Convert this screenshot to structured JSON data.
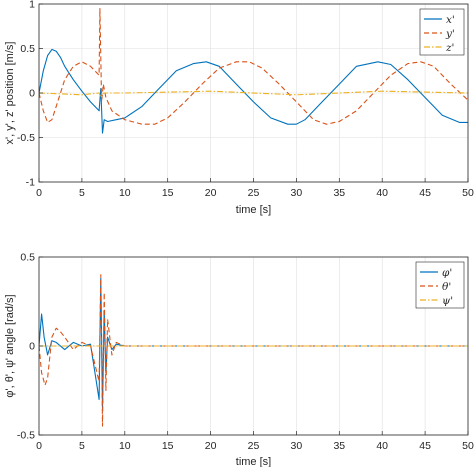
{
  "colors": {
    "series1": "#0072BD",
    "series2": "#D95319",
    "series3": "#EDB120",
    "grid": "#dfdfdf",
    "axes": "#262626"
  },
  "chart_data": [
    {
      "type": "line",
      "title": "",
      "xlabel": "time [s]",
      "ylabel": "x', y', z' position [m/s]",
      "xlim": [
        0,
        50
      ],
      "ylim": [
        -1,
        1
      ],
      "xticks": [
        0,
        5,
        10,
        15,
        20,
        25,
        30,
        35,
        40,
        45,
        50
      ],
      "yticks": [
        -1,
        -0.5,
        0,
        0.5,
        1
      ],
      "xtick_labels": [
        "0",
        "5",
        "10",
        "15",
        "20",
        "25",
        "30",
        "35",
        "40",
        "45",
        "50"
      ],
      "ytick_labels": [
        "-1",
        "-0.5",
        "0",
        "0.5",
        "1"
      ],
      "grid": true,
      "legend_position": "top-right",
      "series": [
        {
          "name": "x'",
          "style": "solid",
          "x": [
            0,
            0.5,
            1,
            1.5,
            2,
            2.5,
            3,
            4,
            5,
            6,
            7,
            7.2,
            7.4,
            7.6,
            8,
            9,
            10,
            12,
            14,
            16,
            18,
            19.5,
            21,
            23,
            25,
            27,
            29,
            30,
            31,
            33,
            35,
            37,
            39.5,
            41,
            43,
            45,
            47,
            49,
            50
          ],
          "y": [
            0,
            0.25,
            0.42,
            0.49,
            0.47,
            0.4,
            0.3,
            0.15,
            0.02,
            -0.1,
            -0.2,
            0.05,
            -0.45,
            -0.3,
            -0.32,
            -0.3,
            -0.28,
            -0.15,
            0.05,
            0.25,
            0.33,
            0.35,
            0.3,
            0.1,
            -0.1,
            -0.28,
            -0.35,
            -0.35,
            -0.3,
            -0.1,
            0.1,
            0.3,
            0.35,
            0.32,
            0.15,
            -0.05,
            -0.25,
            -0.33,
            -0.33
          ]
        },
        {
          "name": "y'",
          "style": "dashed",
          "x": [
            0,
            0.5,
            1,
            1.5,
            2,
            3,
            4,
            5,
            6,
            7,
            7.1,
            7.3,
            7.5,
            7.8,
            8.5,
            10,
            12,
            13.5,
            15,
            17,
            19,
            21,
            23,
            24.5,
            26,
            28,
            30,
            32,
            33.5,
            35,
            37,
            39,
            41,
            43,
            44.5,
            46,
            48,
            50
          ],
          "y": [
            0,
            -0.2,
            -0.33,
            -0.3,
            -0.15,
            0.15,
            0.3,
            0.35,
            0.3,
            0.2,
            0.95,
            -0.1,
            0.1,
            -0.05,
            -0.2,
            -0.3,
            -0.35,
            -0.35,
            -0.28,
            -0.1,
            0.1,
            0.28,
            0.35,
            0.35,
            0.28,
            0.1,
            -0.1,
            -0.3,
            -0.35,
            -0.32,
            -0.2,
            0.0,
            0.2,
            0.33,
            0.35,
            0.3,
            0.1,
            -0.08
          ]
        },
        {
          "name": "z'",
          "style": "dashdot",
          "x": [
            0,
            5,
            7,
            7.2,
            7.5,
            10,
            20,
            30,
            40,
            50
          ],
          "y": [
            0,
            -0.02,
            0,
            -0.05,
            0,
            0,
            0.02,
            -0.02,
            0.02,
            0
          ]
        }
      ]
    },
    {
      "type": "line",
      "title": "",
      "xlabel": "time [s]",
      "ylabel": "φ', θ', ψ' angle [rad/s]",
      "xlim": [
        0,
        50
      ],
      "ylim": [
        -0.5,
        0.5
      ],
      "xticks": [
        0,
        5,
        10,
        15,
        20,
        25,
        30,
        35,
        40,
        45,
        50
      ],
      "yticks": [
        -0.5,
        0,
        0.5
      ],
      "xtick_labels": [
        "0",
        "5",
        "10",
        "15",
        "20",
        "25",
        "30",
        "35",
        "40",
        "45",
        "50"
      ],
      "ytick_labels": [
        "-0.5",
        "0",
        "0.5"
      ],
      "grid": true,
      "legend_position": "top-right",
      "series": [
        {
          "name": "φ'",
          "style": "solid",
          "x": [
            0,
            0.3,
            0.6,
            1,
            1.5,
            2,
            3,
            4,
            5,
            6,
            7,
            7.2,
            7.4,
            7.6,
            7.8,
            8,
            8.5,
            9,
            10,
            50
          ],
          "y": [
            0,
            0.18,
            0.05,
            -0.05,
            0.03,
            0.02,
            -0.02,
            0.02,
            0,
            0.01,
            -0.3,
            0.38,
            -0.35,
            0.2,
            -0.15,
            0.05,
            -0.02,
            0.01,
            0,
            0
          ]
        },
        {
          "name": "θ'",
          "style": "dashed",
          "x": [
            0,
            0.3,
            0.7,
            1,
            1.5,
            2,
            2.5,
            3,
            4,
            5,
            6,
            7,
            7.2,
            7.4,
            7.6,
            7.8,
            8,
            8.5,
            9,
            10,
            50
          ],
          "y": [
            0,
            -0.15,
            -0.22,
            -0.18,
            0.05,
            0.1,
            0.08,
            0.05,
            -0.02,
            0.02,
            0,
            -0.2,
            0.4,
            -0.45,
            0.3,
            -0.25,
            0.15,
            -0.05,
            0.02,
            0,
            0
          ]
        },
        {
          "name": "ψ'",
          "style": "dashdot",
          "x": [
            0,
            10,
            20,
            30,
            40,
            50
          ],
          "y": [
            0,
            0,
            0,
            0,
            0,
            0
          ]
        }
      ]
    }
  ]
}
